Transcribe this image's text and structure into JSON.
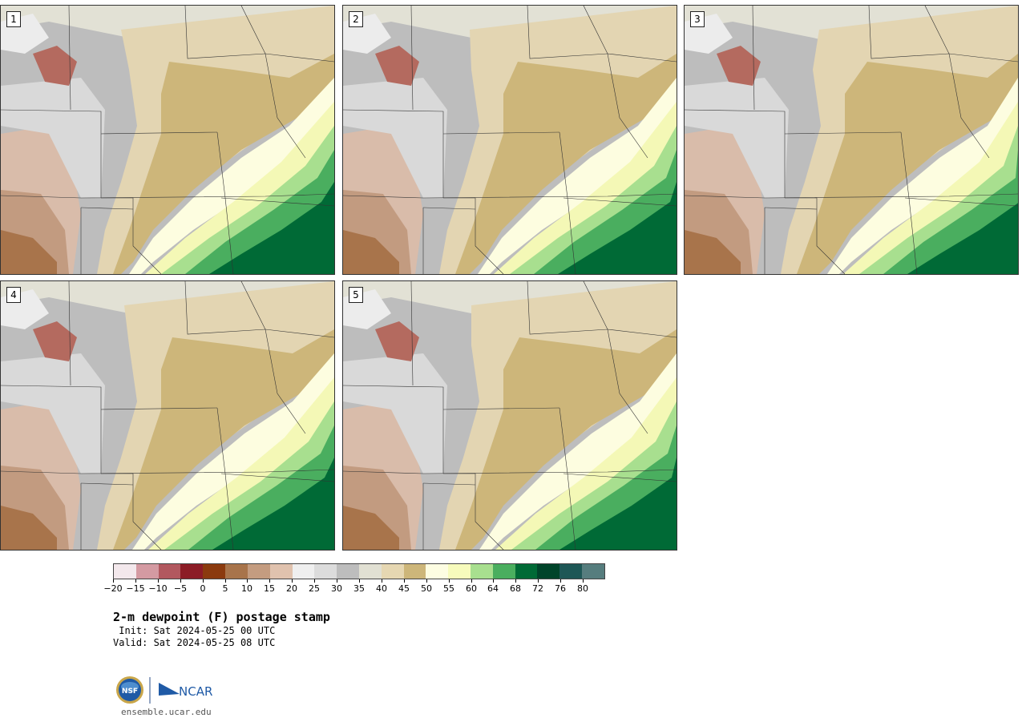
{
  "panels": [
    {
      "label": "1",
      "variant": 0
    },
    {
      "label": "2",
      "variant": 1
    },
    {
      "label": "3",
      "variant": 2
    },
    {
      "label": "4",
      "variant": 3
    },
    {
      "label": "5",
      "variant": 4
    }
  ],
  "colorbar": {
    "colors": [
      "#f3e8ec",
      "#d49aa2",
      "#b2585f",
      "#8c1c26",
      "#8b3a0e",
      "#a8744b",
      "#c49c80",
      "#e0c2ae",
      "#efefef",
      "#dcdcdc",
      "#bdbdbd",
      "#e1e0d3",
      "#e6d7b2",
      "#cdb67a",
      "#fdfde2",
      "#f7fbbc",
      "#a8df8f",
      "#4aae5f",
      "#006a36",
      "#00442a",
      "#1e5756",
      "#567d7e"
    ],
    "tick_labels": [
      "−20",
      "−15",
      "−10",
      "−5",
      "0",
      "5",
      "10",
      "15",
      "20",
      "25",
      "30",
      "35",
      "40",
      "45",
      "50",
      "55",
      "60",
      "64",
      "68",
      "72",
      "76",
      "80"
    ]
  },
  "title": "2-m dewpoint (F) postage stamp",
  "init_line": " Init: Sat 2024-05-25 00 UTC",
  "valid_line": "Valid: Sat 2024-05-25 08 UTC",
  "logos": {
    "nsf": "NSF",
    "ncar": "NCAR"
  },
  "site": "ensemble.ucar.edu"
}
